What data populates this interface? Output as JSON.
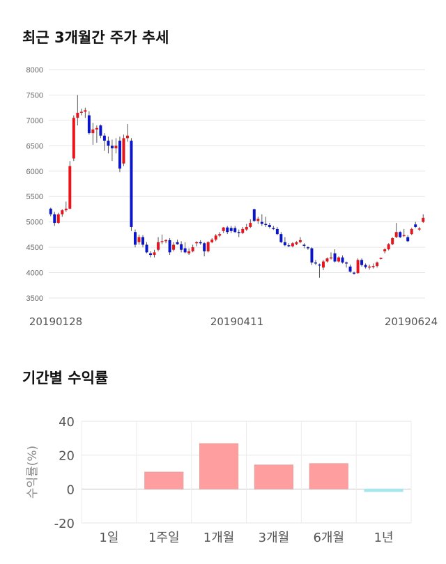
{
  "sections": {
    "price_title": "최근 3개월간 주가 추세",
    "return_title": "기간별 수익률"
  },
  "chart_data": [
    {
      "type": "candlestick",
      "title": "최근 3개월간 주가 추세",
      "ylim": [
        3500,
        8000
      ],
      "yticks": [
        3500,
        4000,
        4500,
        5000,
        5500,
        6000,
        6500,
        7000,
        7500,
        8000
      ],
      "xtick_labels": [
        "20190128",
        "20190411",
        "20190624"
      ],
      "grid": true,
      "colors": {
        "up": "#e8141c",
        "down": "#0a14c8",
        "wick": "#555555"
      },
      "candles": [
        [
          5260,
          5280,
          5110,
          5150
        ],
        [
          5150,
          5200,
          4920,
          4980
        ],
        [
          4980,
          5180,
          4960,
          5150
        ],
        [
          5150,
          5250,
          5100,
          5230
        ],
        [
          5230,
          5400,
          5200,
          5260
        ],
        [
          5260,
          6200,
          5250,
          6100
        ],
        [
          6250,
          7100,
          6200,
          7050
        ],
        [
          7050,
          7500,
          6900,
          7150
        ],
        [
          7150,
          7230,
          7100,
          7170
        ],
        [
          7170,
          7250,
          7050,
          7200
        ],
        [
          7100,
          7180,
          6720,
          6750
        ],
        [
          6750,
          6950,
          6520,
          6820
        ],
        [
          6820,
          6900,
          6560,
          6850
        ],
        [
          6900,
          6920,
          6650,
          6700
        ],
        [
          6700,
          6750,
          6400,
          6600
        ],
        [
          6600,
          6680,
          6350,
          6500
        ],
        [
          6500,
          6620,
          6200,
          6450
        ],
        [
          6450,
          6650,
          6350,
          6500
        ],
        [
          6600,
          6680,
          5980,
          6050
        ],
        [
          6150,
          6720,
          6100,
          6650
        ],
        [
          6650,
          6930,
          6580,
          6700
        ],
        [
          6600,
          6650,
          4820,
          4900
        ],
        [
          4800,
          4850,
          4500,
          4550
        ],
        [
          4600,
          4750,
          4550,
          4700
        ],
        [
          4700,
          4740,
          4500,
          4550
        ],
        [
          4550,
          4600,
          4380,
          4400
        ],
        [
          4380,
          4420,
          4300,
          4350
        ],
        [
          4350,
          4450,
          4300,
          4400
        ],
        [
          4450,
          4700,
          4420,
          4600
        ],
        [
          4600,
          4750,
          4560,
          4620
        ],
        [
          4620,
          4660,
          4580,
          4640
        ],
        [
          4640,
          4680,
          4350,
          4400
        ],
        [
          4450,
          4600,
          4420,
          4550
        ],
        [
          4600,
          4650,
          4550,
          4560
        ],
        [
          4560,
          4620,
          4400,
          4450
        ],
        [
          4480,
          4600,
          4380,
          4400
        ],
        [
          4380,
          4480,
          4350,
          4420
        ],
        [
          4420,
          4550,
          4400,
          4500
        ],
        [
          4580,
          4620,
          4520,
          4600
        ],
        [
          4600,
          4640,
          4550,
          4580
        ],
        [
          4580,
          4600,
          4320,
          4420
        ],
        [
          4420,
          4620,
          4400,
          4600
        ],
        [
          4600,
          4680,
          4580,
          4650
        ],
        [
          4650,
          4760,
          4620,
          4730
        ],
        [
          4730,
          4800,
          4700,
          4760
        ],
        [
          4820,
          4900,
          4780,
          4890
        ],
        [
          4890,
          4920,
          4760,
          4800
        ],
        [
          4880,
          4920,
          4780,
          4820
        ],
        [
          4880,
          4920,
          4780,
          4800
        ],
        [
          4800,
          4850,
          4700,
          4780
        ],
        [
          4780,
          4900,
          4760,
          4860
        ],
        [
          4850,
          4960,
          4820,
          4900
        ],
        [
          4900,
          5050,
          4880,
          4980
        ],
        [
          5250,
          5260,
          5000,
          5020
        ],
        [
          5020,
          5100,
          4960,
          5060
        ],
        [
          5000,
          5150,
          4920,
          4960
        ],
        [
          4960,
          5100,
          4900,
          4940
        ],
        [
          4940,
          4980,
          4870,
          4900
        ],
        [
          4880,
          4920,
          4840,
          4860
        ],
        [
          4860,
          4900,
          4740,
          4760
        ],
        [
          4760,
          4800,
          4580,
          4600
        ],
        [
          4600,
          4700,
          4520,
          4540
        ],
        [
          4540,
          4580,
          4500,
          4520
        ],
        [
          4520,
          4600,
          4500,
          4580
        ],
        [
          4560,
          4620,
          4540,
          4600
        ],
        [
          4600,
          4700,
          4580,
          4640
        ],
        [
          4550,
          4580,
          4480,
          4540
        ],
        [
          4500,
          4520,
          4450,
          4480
        ],
        [
          4480,
          4500,
          4150,
          4200
        ],
        [
          4200,
          4250,
          4150,
          4180
        ],
        [
          4160,
          4180,
          3900,
          4140
        ],
        [
          4100,
          4250,
          4050,
          4220
        ],
        [
          4220,
          4300,
          4200,
          4280
        ],
        [
          4280,
          4400,
          4260,
          4300
        ],
        [
          4380,
          4460,
          4200,
          4220
        ],
        [
          4220,
          4320,
          4200,
          4300
        ],
        [
          4300,
          4340,
          4180,
          4200
        ],
        [
          4200,
          4220,
          4100,
          4180
        ],
        [
          4120,
          4160,
          4000,
          4020
        ],
        [
          4000,
          4020,
          3960,
          3990
        ],
        [
          3990,
          4280,
          3980,
          4250
        ],
        [
          4250,
          4280,
          4120,
          4150
        ],
        [
          4150,
          4180,
          4080,
          4110
        ],
        [
          4100,
          4160,
          4060,
          4120
        ],
        [
          4120,
          4180,
          4080,
          4130
        ],
        [
          4130,
          4220,
          4100,
          4200
        ],
        [
          4280,
          4300,
          4260,
          4290
        ],
        [
          4420,
          4480,
          4380,
          4460
        ],
        [
          4460,
          4580,
          4440,
          4560
        ],
        [
          4560,
          4700,
          4540,
          4680
        ],
        [
          4700,
          4980,
          4680,
          4800
        ],
        [
          4800,
          4820,
          4680,
          4700
        ],
        [
          4720,
          4860,
          4700,
          4740
        ],
        [
          4700,
          4740,
          4600,
          4620
        ],
        [
          4760,
          4880,
          4740,
          4860
        ],
        [
          4950,
          5000,
          4880,
          4900
        ],
        [
          4850,
          4900,
          4820,
          4870
        ],
        [
          5000,
          5150,
          4980,
          5080
        ]
      ]
    },
    {
      "type": "bar",
      "title": "기간별 수익률",
      "categories": [
        "1일",
        "1주일",
        "1개월",
        "3개월",
        "6개월",
        "1년"
      ],
      "values": [
        0,
        10,
        26.8,
        14.2,
        15,
        -1.5
      ],
      "ylabel": "수익률(%)",
      "ylim": [
        -20,
        40
      ],
      "yticks": [
        -20,
        0,
        20,
        40
      ],
      "grid": true,
      "colors": {
        "positive": "#ff9e9e",
        "positive_border": "#e8a0a0",
        "negative": "#a8e6ee"
      }
    }
  ]
}
